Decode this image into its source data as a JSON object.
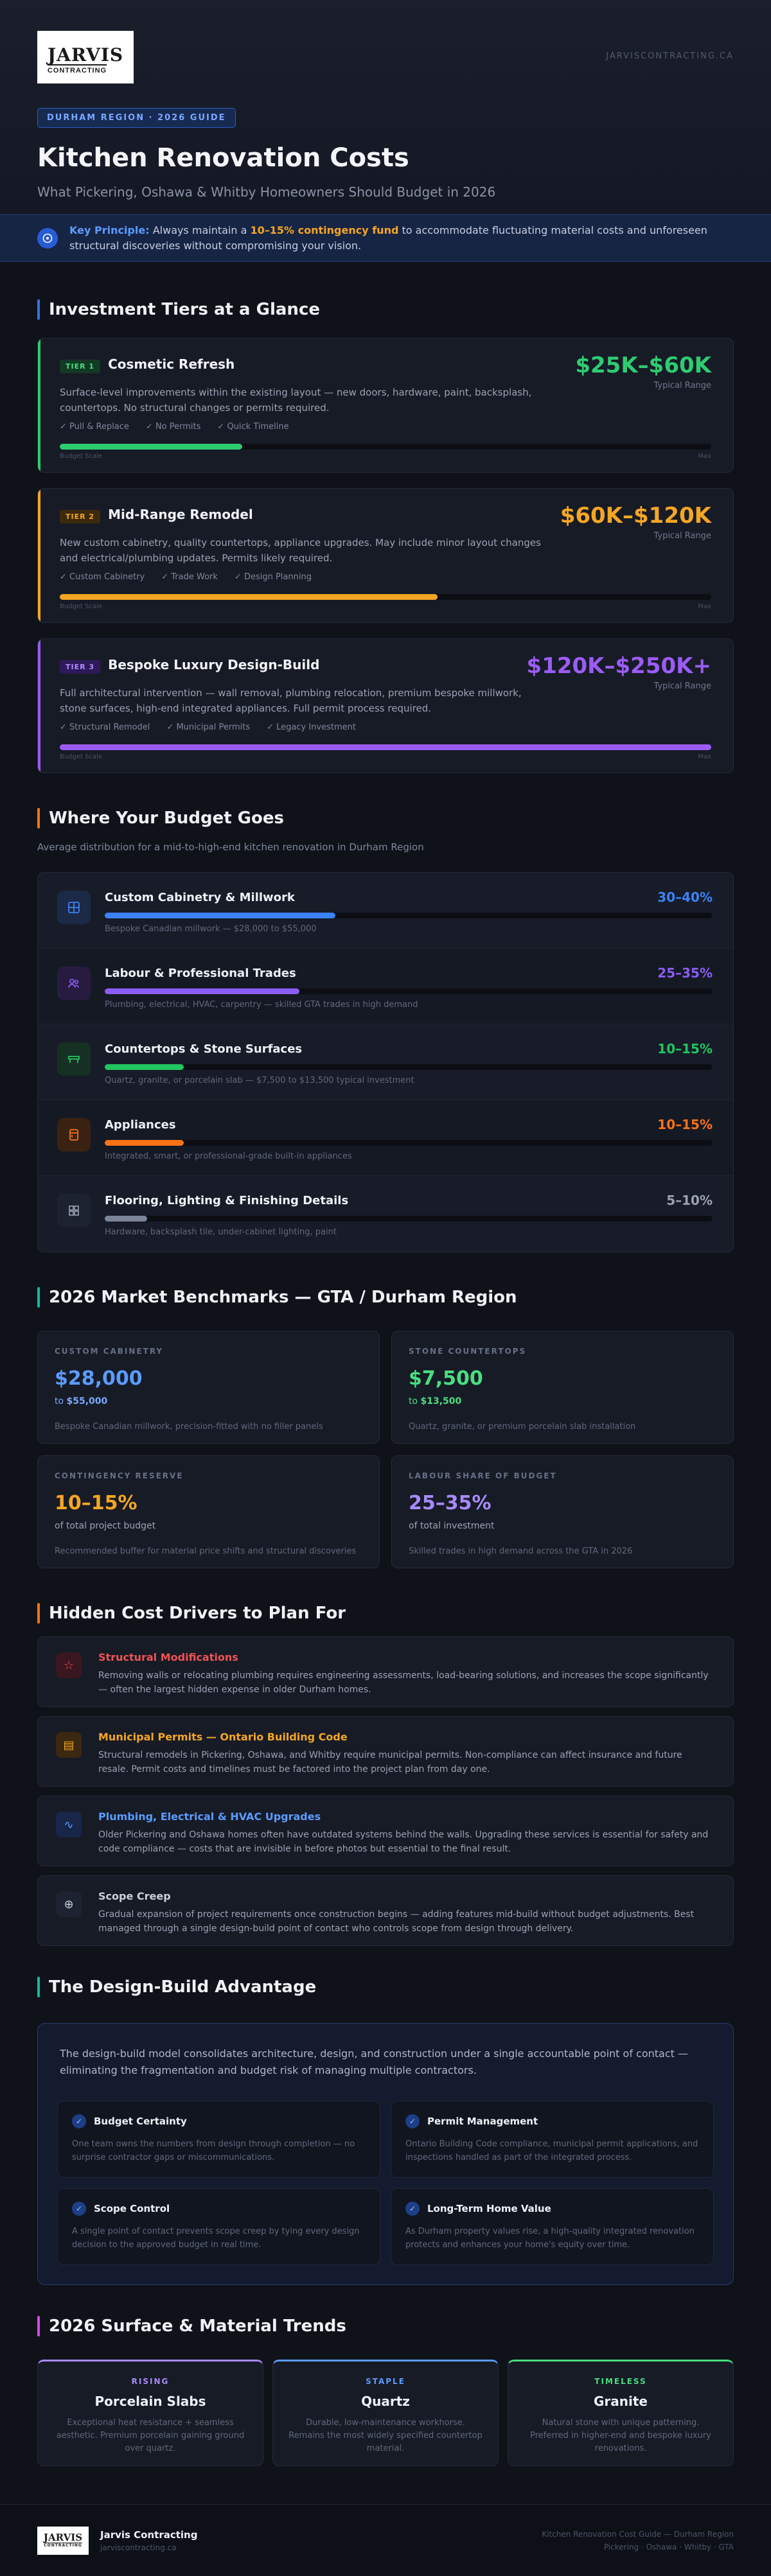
{
  "header": {
    "logo_word": "JARVIS",
    "logo_sub": "CONTRACTING",
    "site": "JARVISCONTRACTING.CA",
    "badge": "DURHAM REGION · 2026 GUIDE",
    "title": "Kitchen Renovation Costs",
    "subtitle": "What Pickering, Oshawa & Whitby Homeowners Should Budget in 2026"
  },
  "principle": {
    "icon": "info-icon",
    "key": "Key Principle:",
    "pre": "Always maintain a",
    "highlight": "10–15% contingency fund",
    "post": "to accommodate fluctuating material costs and unforeseen structural discoveries without compromising your vision."
  },
  "tiers_section": {
    "title": "Investment Tiers at a Glance",
    "range_label": "Typical Range",
    "scale_min": "Budget Scale",
    "scale_max": "Max",
    "tiers": [
      {
        "tag": "TIER 1",
        "name": "Cosmetic Refresh",
        "price": "$25K–$60K",
        "desc": "Surface-level improvements within the existing layout — new doors, hardware, paint, backsplash, countertops. No structural changes or permits required.",
        "features": [
          "✓ Pull & Replace",
          "✓ No Permits",
          "✓ Quick Timeline"
        ],
        "fill": 0.28,
        "color": "#2ecc71",
        "tag_bg": "#123a24",
        "tag_fg": "#4ade80"
      },
      {
        "tag": "TIER 2",
        "name": "Mid-Range Remodel",
        "price": "$60K–$120K",
        "desc": "New custom cabinetry, quality countertops, appliance upgrades. May include minor layout changes and electrical/plumbing updates. Permits likely required.",
        "features": [
          "✓ Custom Cabinetry",
          "✓ Trade Work",
          "✓ Design Planning"
        ],
        "fill": 0.58,
        "color": "#f5a623",
        "tag_bg": "#3d2a0d",
        "tag_fg": "#f5a623"
      },
      {
        "tag": "TIER 3",
        "name": "Bespoke Luxury Design-Build",
        "price": "$120K–$250K+",
        "desc": "Full architectural intervention — wall removal, plumbing relocation, premium bespoke millwork, stone surfaces, high-end integrated appliances. Full permit process required.",
        "features": [
          "✓ Structural Remodel",
          "✓ Municipal Permits",
          "✓ Legacy Investment"
        ],
        "fill": 1.0,
        "color": "#9b5cf6",
        "tag_bg": "#2e1a5a",
        "tag_fg": "#b48cff"
      }
    ]
  },
  "budget_section": {
    "title": "Where Your Budget Goes",
    "desc": "Average distribution for a mid-to-high-end kitchen renovation in Durham Region",
    "rows": [
      {
        "icon": "cabinet-icon",
        "label": "Custom Cabinetry & Millwork",
        "pct": "30–40%",
        "note": "Bespoke Canadian millwork — $28,000 to $55,000",
        "fill": 0.38,
        "color": "#3b82f6",
        "icon_bg": "#1c2a48"
      },
      {
        "icon": "people-icon",
        "label": "Labour & Professional Trades",
        "pct": "25–35%",
        "note": "Plumbing, electrical, HVAC, carpentry — skilled GTA trades in high demand",
        "fill": 0.32,
        "color": "#8b5cf6",
        "icon_bg": "#271c40"
      },
      {
        "icon": "countertop-icon",
        "label": "Countertops & Stone Surfaces",
        "pct": "10–15%",
        "note": "Quartz, granite, or porcelain slab — $7,500 to $13,500 typical investment",
        "fill": 0.13,
        "color": "#22c55e",
        "icon_bg": "#163024"
      },
      {
        "icon": "appliance-icon",
        "label": "Appliances",
        "pct": "10–15%",
        "note": "Integrated, smart, or professional-grade built-in appliances",
        "fill": 0.13,
        "color": "#f97316",
        "icon_bg": "#3a2212"
      },
      {
        "icon": "grid-icon",
        "label": "Flooring, Lighting & Finishing Details",
        "pct": "5–10%",
        "note": "Hardware, backsplash tile, under-cabinet lighting, paint",
        "fill": 0.07,
        "color": "#7c8599",
        "icon_bg": "#1d2230"
      }
    ]
  },
  "bench_section": {
    "title": "2026 Market Benchmarks — GTA / Durham Region",
    "cards": [
      {
        "k": "CUSTOM CABINETRY",
        "v": "$28,000",
        "to_pre": "to",
        "to_val": "$55,000",
        "n": "Bespoke Canadian millwork, precision-fitted with no filler panels",
        "color": "#5b9bff",
        "to_color": "#7aa7ff"
      },
      {
        "k": "STONE COUNTERTOPS",
        "v": "$7,500",
        "to_pre": "to",
        "to_val": "$13,500",
        "n": "Quartz, granite, or premium porcelain slab installation",
        "color": "#4ade80",
        "to_color": "#4ade80"
      },
      {
        "k": "CONTINGENCY RESERVE",
        "v": "10–15%",
        "to_pre": "of total project budget",
        "to_val": "",
        "n": "Recommended buffer for material price shifts and structural discoveries",
        "color": "#f5a623",
        "to_color": "#9aa2b3"
      },
      {
        "k": "LABOUR SHARE OF BUDGET",
        "v": "25–35%",
        "to_pre": "of total investment",
        "to_val": "",
        "n": "Skilled trades in high demand across the GTA in 2026",
        "color": "#a78bfa",
        "to_color": "#9aa2b3"
      }
    ]
  },
  "hidden_section": {
    "title": "Hidden Cost Drivers to Plan For",
    "items": [
      {
        "icon": "warning-star-icon",
        "glyph": "☆",
        "t": "Structural Modifications",
        "d": "Removing walls or relocating plumbing requires engineering assessments, load-bearing solutions, and increases the scope significantly — often the largest hidden expense in older Durham homes.",
        "color": "#f05252",
        "bg": "#3a1620"
      },
      {
        "icon": "document-icon",
        "glyph": "▤",
        "t": "Municipal Permits — Ontario Building Code",
        "d": "Structural remodels in Pickering, Oshawa, and Whitby require municipal permits. Non-compliance can affect insurance and future resale. Permit costs and timelines must be factored into the project plan from day one.",
        "color": "#f5a623",
        "bg": "#3a2810"
      },
      {
        "icon": "pulse-icon",
        "glyph": "∿",
        "t": "Plumbing, Electrical & HVAC Upgrades",
        "d": "Older Pickering and Oshawa homes often have outdated systems behind the walls. Upgrading these services is essential for safety and code compliance — costs that are invisible in before photos but essential to the final result.",
        "color": "#5b9bff",
        "bg": "#18264a"
      },
      {
        "icon": "plus-circle-icon",
        "glyph": "⊕",
        "t": "Scope Creep",
        "d": "Gradual expansion of project requirements once construction begins — adding features mid-build without budget adjustments. Best managed through a single design-build point of contact who controls scope from design through delivery.",
        "color": "#c9cfdb",
        "bg": "#1d2230"
      }
    ]
  },
  "db_section": {
    "title": "The Design-Build Advantage",
    "intro": "The design-build model consolidates architecture, design, and construction under a single accountable point of contact — eliminating the fragmentation and budget risk of managing multiple contractors.",
    "cards": [
      {
        "t": "Budget Certainty",
        "d": "One team owns the numbers from design through completion — no surprise contractor gaps or miscommunications."
      },
      {
        "t": "Permit Management",
        "d": "Ontario Building Code compliance, municipal permit applications, and inspections handled as part of the integrated process."
      },
      {
        "t": "Scope Control",
        "d": "A single point of contact prevents scope creep by tying every design decision to the approved budget in real time."
      },
      {
        "t": "Long-Term Home Value",
        "d": "As Durham property values rise, a high-quality integrated renovation protects and enhances your home's equity over time."
      }
    ]
  },
  "trends_section": {
    "title": "2026 Surface & Material Trends",
    "cards": [
      {
        "k": "RISING",
        "n": "Porcelain Slabs",
        "d": "Exceptional heat resistance + seamless aesthetic. Premium porcelain gaining ground over quartz.",
        "color": "#a78bfa"
      },
      {
        "k": "STAPLE",
        "n": "Quartz",
        "d": "Durable, low-maintenance workhorse. Remains the most widely specified countertop material.",
        "color": "#5b9bff"
      },
      {
        "k": "TIMELESS",
        "n": "Granite",
        "d": "Natural stone with unique patterning. Preferred in higher-end and bespoke luxury renovations.",
        "color": "#4ade80"
      }
    ]
  },
  "footer": {
    "brand": "Jarvis Contracting",
    "sub": "jarviscontracting.ca",
    "r1": "Kitchen Renovation Cost Guide — Durham Region",
    "r2": "Pickering · Oshawa · Whitby · GTA"
  },
  "colors": {
    "accent": "#5b9bff",
    "orange": "#f5a623",
    "green": "#2ecc71",
    "purple": "#9b5cf6"
  }
}
